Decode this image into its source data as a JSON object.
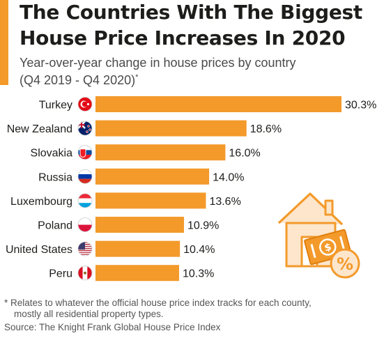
{
  "title_line1": "The Countries With The Biggest",
  "title_line2": "House Price Increases In 2020",
  "subtitle_line1": "Year-over-year change in house prices by country",
  "subtitle_line2": "(Q4 2019 - Q4 2020)",
  "subtitle_mark": "*",
  "footnote_line1": "* Relates to whatever the official house price index tracks for each county,",
  "footnote_line2": "mostly all residential property types.",
  "source": "Source: The Knight Frank Global House Price Index",
  "colors": {
    "bar": "#f39a2b",
    "accent": "#f39a2b",
    "text": "#1d1d1b"
  },
  "chart_data": {
    "type": "bar",
    "orientation": "horizontal",
    "categories": [
      "Turkey",
      "New Zealand",
      "Slovakia",
      "Russia",
      "Luxembourg",
      "Poland",
      "United States",
      "Peru"
    ],
    "values": [
      30.3,
      18.6,
      16.0,
      14.0,
      13.6,
      10.9,
      10.4,
      10.3
    ],
    "value_labels": [
      "30.3%",
      "18.6%",
      "16.0%",
      "14.0%",
      "13.6%",
      "10.9%",
      "10.4%",
      "10.3%"
    ],
    "flag_icons": [
      "turkey-flag-icon",
      "new-zealand-flag-icon",
      "slovakia-flag-icon",
      "russia-flag-icon",
      "luxembourg-flag-icon",
      "poland-flag-icon",
      "united-states-flag-icon",
      "peru-flag-icon"
    ],
    "unit": "%",
    "xlim": [
      0,
      30.3
    ],
    "grid": false
  }
}
